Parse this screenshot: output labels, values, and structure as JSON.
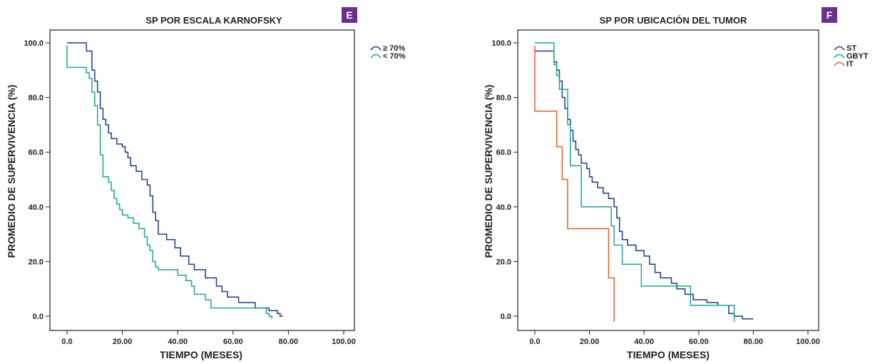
{
  "colors": {
    "navy": "#1f3a8a",
    "teal": "#1aa79a",
    "orange": "#ef5a24",
    "badge": "#6a2f8f",
    "axis": "#231f20"
  },
  "chart_data": [
    {
      "type": "line",
      "panel_letter": "E",
      "title": "SP POR ESCALA KARNOFSKY",
      "xlabel": "TIEMPO (MESES)",
      "ylabel": "PROMEDIO DE SUPERVIVENCIA (%)",
      "xlim": [
        0,
        100
      ],
      "ylim": [
        0,
        100
      ],
      "x_ticks": [
        "0.0",
        "20.00",
        "40.00",
        "60.00",
        "80.00",
        "100.00"
      ],
      "y_ticks": [
        "0.0",
        "20.0",
        "40.0",
        "60.0",
        "80.0",
        "100.0"
      ],
      "grid": false,
      "legend_position": "top-right",
      "series": [
        {
          "name": "≥ 70%",
          "color": "#1f3a8a",
          "points": [
            [
              0,
              100
            ],
            [
              6,
              100
            ],
            [
              7,
              97
            ],
            [
              8,
              97
            ],
            [
              9,
              90
            ],
            [
              10,
              86
            ],
            [
              11,
              82
            ],
            [
              12,
              76
            ],
            [
              13,
              72
            ],
            [
              14,
              70
            ],
            [
              15,
              67
            ],
            [
              16,
              65
            ],
            [
              18,
              63
            ],
            [
              20,
              62
            ],
            [
              21,
              60
            ],
            [
              22,
              58
            ],
            [
              23,
              55
            ],
            [
              25,
              53
            ],
            [
              27,
              50
            ],
            [
              29,
              48
            ],
            [
              30,
              44
            ],
            [
              31,
              38
            ],
            [
              32,
              35
            ],
            [
              33,
              30
            ],
            [
              36,
              28
            ],
            [
              39,
              25
            ],
            [
              41,
              22
            ],
            [
              44,
              19
            ],
            [
              46,
              17
            ],
            [
              50,
              14
            ],
            [
              54,
              11
            ],
            [
              56,
              9
            ],
            [
              58,
              7
            ],
            [
              62,
              5
            ],
            [
              68,
              3
            ],
            [
              73,
              2
            ],
            [
              76,
              1
            ],
            [
              77,
              0
            ],
            [
              78,
              0
            ]
          ]
        },
        {
          "name": "< 70%",
          "color": "#1aa79a",
          "points": [
            [
              0,
              99
            ],
            [
              0,
              91
            ],
            [
              6,
              91
            ],
            [
              7,
              89
            ],
            [
              8,
              87
            ],
            [
              9,
              82
            ],
            [
              10,
              77
            ],
            [
              11,
              70
            ],
            [
              12,
              59
            ],
            [
              13,
              51
            ],
            [
              14,
              51
            ],
            [
              15,
              49
            ],
            [
              16,
              46
            ],
            [
              17,
              43
            ],
            [
              18,
              41
            ],
            [
              19,
              39
            ],
            [
              20,
              37
            ],
            [
              22,
              36
            ],
            [
              24,
              34
            ],
            [
              26,
              32
            ],
            [
              28,
              29
            ],
            [
              29,
              26
            ],
            [
              30,
              24
            ],
            [
              31,
              20
            ],
            [
              32,
              18
            ],
            [
              33,
              17
            ],
            [
              37,
              17
            ],
            [
              40,
              15
            ],
            [
              43,
              13
            ],
            [
              45,
              11
            ],
            [
              46,
              8
            ],
            [
              50,
              6
            ],
            [
              52,
              3
            ],
            [
              70,
              3
            ],
            [
              72,
              1
            ],
            [
              73,
              0
            ],
            [
              74,
              -1
            ]
          ]
        }
      ]
    },
    {
      "type": "line",
      "panel_letter": "F",
      "title": "SP POR UBICACIÓN DEL TUMOR",
      "xlabel": "TIEMPO (MESES)",
      "ylabel": "PROMEDIO DE SUPERVIVENCIA (%)",
      "xlim": [
        0,
        100
      ],
      "ylim": [
        0,
        100
      ],
      "x_ticks": [
        "0.0",
        "20.00",
        "40.00",
        "60.00",
        "80.00",
        "100.00"
      ],
      "y_ticks": [
        "0.0",
        "20.0",
        "40.0",
        "60.0",
        "80.0",
        "100.0"
      ],
      "grid": false,
      "legend_position": "top-right",
      "series": [
        {
          "name": "ST",
          "color": "#1f3a8a",
          "points": [
            [
              0,
              97
            ],
            [
              6,
              97
            ],
            [
              7,
              93
            ],
            [
              8,
              90
            ],
            [
              9,
              86
            ],
            [
              10,
              80
            ],
            [
              11,
              76
            ],
            [
              12,
              72
            ],
            [
              13,
              68
            ],
            [
              14,
              64
            ],
            [
              15,
              61
            ],
            [
              16,
              59
            ],
            [
              17,
              56
            ],
            [
              19,
              54
            ],
            [
              20,
              51
            ],
            [
              21,
              49
            ],
            [
              23,
              47
            ],
            [
              25,
              45
            ],
            [
              27,
              43
            ],
            [
              29,
              40
            ],
            [
              30,
              36
            ],
            [
              31,
              31
            ],
            [
              32,
              28
            ],
            [
              34,
              26
            ],
            [
              37,
              24
            ],
            [
              40,
              22
            ],
            [
              42,
              19
            ],
            [
              44,
              16
            ],
            [
              46,
              14
            ],
            [
              50,
              12
            ],
            [
              52,
              10
            ],
            [
              55,
              8
            ],
            [
              58,
              6
            ],
            [
              63,
              5
            ],
            [
              67,
              4
            ],
            [
              71,
              1
            ],
            [
              73,
              0
            ],
            [
              76,
              -1
            ],
            [
              80,
              -1
            ]
          ]
        },
        {
          "name": "GBYT",
          "color": "#1aa79a",
          "points": [
            [
              0,
              100
            ],
            [
              7,
              100
            ],
            [
              7,
              92
            ],
            [
              8,
              88
            ],
            [
              9,
              83
            ],
            [
              11,
              83
            ],
            [
              12,
              70
            ],
            [
              13,
              55
            ],
            [
              16,
              55
            ],
            [
              17,
              40
            ],
            [
              28,
              40
            ],
            [
              28,
              33
            ],
            [
              29,
              26
            ],
            [
              31,
              26
            ],
            [
              32,
              19
            ],
            [
              38,
              19
            ],
            [
              39,
              11
            ],
            [
              56,
              11
            ],
            [
              57,
              4
            ],
            [
              73,
              4
            ],
            [
              73,
              -2
            ]
          ]
        },
        {
          "name": "IT",
          "color": "#ef5a24",
          "points": [
            [
              0,
              99
            ],
            [
              0,
              75
            ],
            [
              8,
              75
            ],
            [
              8,
              62
            ],
            [
              10,
              62
            ],
            [
              10,
              50
            ],
            [
              12,
              50
            ],
            [
              12,
              32
            ],
            [
              27,
              32
            ],
            [
              27,
              14
            ],
            [
              29,
              14
            ],
            [
              29,
              -2
            ]
          ]
        }
      ]
    }
  ]
}
